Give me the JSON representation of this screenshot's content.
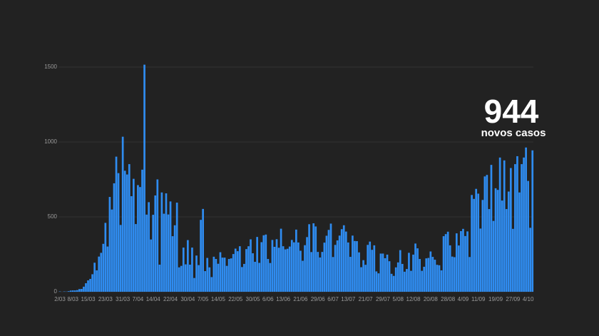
{
  "chart_data": {
    "type": "bar",
    "annotation": {
      "value": "944",
      "label": "novos casos"
    },
    "categories": [
      "2/03",
      null,
      null,
      null,
      null,
      null,
      "8/03",
      null,
      null,
      null,
      null,
      null,
      null,
      "15/03",
      null,
      null,
      null,
      null,
      null,
      null,
      null,
      "23/03",
      null,
      null,
      null,
      null,
      null,
      null,
      null,
      "31/03",
      null,
      null,
      null,
      null,
      null,
      null,
      "7/04",
      null,
      null,
      null,
      null,
      null,
      null,
      "14/04",
      null,
      null,
      null,
      null,
      null,
      null,
      null,
      "22/04",
      null,
      null,
      null,
      null,
      null,
      null,
      null,
      "30/04",
      null,
      null,
      null,
      null,
      null,
      null,
      "7/05",
      null,
      null,
      null,
      null,
      null,
      null,
      "14/05",
      null,
      null,
      null,
      null,
      null,
      null,
      null,
      "22/05",
      null,
      null,
      null,
      null,
      null,
      null,
      null,
      "30/05",
      null,
      null,
      null,
      null,
      null,
      null,
      "6/06",
      null,
      null,
      null,
      null,
      null,
      null,
      "13/06",
      null,
      null,
      null,
      null,
      null,
      null,
      null,
      "21/06",
      null,
      null,
      null,
      null,
      null,
      null,
      null,
      "29/06",
      null,
      null,
      null,
      null,
      null,
      null,
      "6/07",
      null,
      null,
      null,
      null,
      null,
      null,
      "13/07",
      null,
      null,
      null,
      null,
      null,
      null,
      null,
      "21/07",
      null,
      null,
      null,
      null,
      null,
      null,
      null,
      "29/07",
      null,
      null,
      null,
      null,
      null,
      null,
      "5/08",
      null,
      null,
      null,
      null,
      null,
      null,
      "12/08",
      null,
      null,
      null,
      null,
      null,
      null,
      null,
      "20/08",
      null,
      null,
      null,
      null,
      null,
      null,
      null,
      "28/08",
      null,
      null,
      null,
      null,
      null,
      null,
      "4/09",
      null,
      null,
      null,
      null,
      null,
      null,
      "11/09",
      null,
      null,
      null,
      null,
      null,
      null,
      null,
      "19/09",
      null,
      null,
      null,
      null,
      null,
      null,
      null,
      "27/09",
      null,
      null,
      null,
      null,
      null,
      null,
      "4/10",
      null,
      null
    ],
    "values": [
      2,
      0,
      2,
      1,
      4,
      8,
      9,
      9,
      11,
      18,
      19,
      34,
      57,
      76,
      86,
      117,
      194,
      143,
      235,
      260,
      320,
      460,
      302,
      633,
      549,
      724,
      902,
      792,
      446,
      1035,
      808,
      783,
      852,
      638,
      754,
      452,
      712,
      699,
      815,
      1516,
      515,
      598,
      349,
      514,
      643,
      750,
      181,
      663,
      521,
      657,
      516,
      603,
      371,
      444,
      595,
      163,
      173,
      295,
      183,
      345,
      181,
      295,
      92,
      242,
      178,
      480,
      553,
      138,
      226,
      163,
      98,
      234,
      219,
      187,
      264,
      228,
      228,
      173,
      219,
      223,
      252,
      288,
      271,
      304,
      165,
      186,
      285,
      304,
      350,
      257,
      200,
      366,
      193,
      331,
      377,
      382,
      219,
      192,
      346,
      300,
      351,
      294,
      421,
      304,
      283,
      287,
      302,
      346,
      330,
      415,
      329,
      274,
      207,
      311,
      365,
      451,
      265,
      457,
      436,
      266,
      229,
      266,
      328,
      374,
      413,
      455,
      232,
      313,
      343,
      375,
      418,
      444,
      402,
      329,
      233,
      375,
      339,
      338,
      263,
      164,
      211,
      180,
      313,
      335,
      280,
      310,
      136,
      123,
      255,
      255,
      224,
      248,
      204,
      120,
      106,
      163,
      196,
      278,
      186,
      134,
      152,
      260,
      140,
      248,
      322,
      290,
      219,
      140,
      167,
      223,
      226,
      269,
      233,
      214,
      180,
      177,
      143,
      371,
      385,
      401,
      310,
      235,
      231,
      390,
      309,
      405,
      420,
      372,
      403,
      232,
      646,
      620,
      687,
      655,
      422,
      613,
      770,
      780,
      552,
      847,
      473,
      691,
      680,
      896,
      609,
      877,
      552,
      669,
      826,
      420,
      852,
      905,
      663,
      852,
      896,
      963,
      740,
      427,
      944
    ],
    "color": "#2f8cf0",
    "ylim": [
      0,
      1500
    ],
    "yticks": [
      0,
      500,
      1000,
      1500
    ],
    "grid": true
  }
}
